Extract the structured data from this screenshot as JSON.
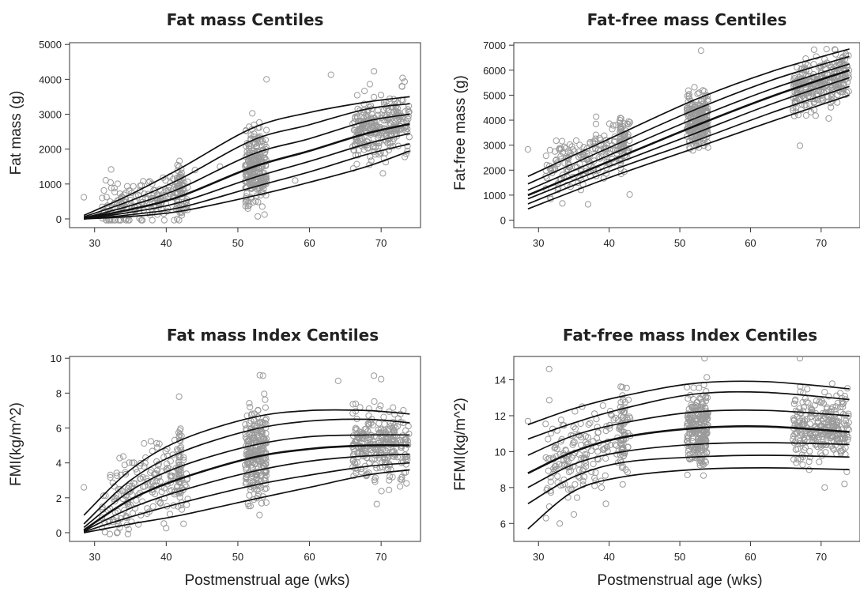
{
  "colors": {
    "points": "#9a9a9a",
    "lines": "#111111"
  },
  "chart_data": [
    {
      "type": "scatter",
      "title": "Fat mass Centiles",
      "xlabel": "",
      "ylabel": "Fat mass (g)",
      "xlim": [
        26.5,
        75.5
      ],
      "ylim": [
        -250,
        5050
      ],
      "xticks": [
        30,
        40,
        50,
        60,
        70
      ],
      "yticks": [
        0,
        1000,
        2000,
        3000,
        4000,
        5000
      ],
      "clusters": [
        {
          "x_range": [
            31,
            43
          ],
          "y_mean": 500,
          "y_sd": 330,
          "n": 190
        },
        {
          "x_range": [
            41.5,
            42.2
          ],
          "y_mean": 900,
          "y_sd": 420,
          "n": 45
        },
        {
          "x_range": [
            51,
            54
          ],
          "y_mean": 1500,
          "y_sd": 520,
          "n": 240
        },
        {
          "x_range": [
            66,
            74
          ],
          "y_mean": 2600,
          "y_sd": 450,
          "n": 280
        }
      ],
      "outliers": [
        [
          28.5,
          620
        ],
        [
          54,
          4000
        ],
        [
          63,
          4130
        ],
        [
          69,
          4230
        ],
        [
          73,
          4040
        ],
        [
          47.5,
          1500
        ],
        [
          58,
          1100
        ],
        [
          44,
          1400
        ]
      ],
      "centile_x": [
        28.5,
        35,
        42,
        52,
        60,
        68,
        74
      ],
      "centiles": [
        {
          "name": "c1",
          "values": [
            0,
            70,
            220,
            650,
            1050,
            1500,
            1950
          ]
        },
        {
          "name": "c2",
          "values": [
            0,
            120,
            330,
            900,
            1350,
            1850,
            2150
          ]
        },
        {
          "name": "c3",
          "values": [
            10,
            190,
            480,
            1170,
            1650,
            2150,
            2450
          ]
        },
        {
          "name": "c4",
          "values": [
            20,
            270,
            650,
            1480,
            1950,
            2450,
            2720
          ]
        },
        {
          "name": "c5",
          "values": [
            30,
            380,
            880,
            1850,
            2300,
            2800,
            3000
          ]
        },
        {
          "name": "c6",
          "values": [
            60,
            520,
            1150,
            2250,
            2700,
            3150,
            3300
          ]
        },
        {
          "name": "c7",
          "values": [
            100,
            700,
            1450,
            2600,
            3050,
            3350,
            3500
          ]
        }
      ]
    },
    {
      "type": "scatter",
      "title": "Fat-free mass Centiles",
      "xlabel": "",
      "ylabel": "Fat-free mass (g)",
      "xlim": [
        26.5,
        75.5
      ],
      "ylim": [
        -300,
        7100
      ],
      "xticks": [
        30,
        40,
        50,
        60,
        70
      ],
      "yticks": [
        0,
        1000,
        2000,
        3000,
        4000,
        5000,
        6000,
        7000
      ],
      "clusters": [
        {
          "x_range": [
            31,
            43
          ],
          "y_mean": 2600,
          "y_sd": 600,
          "n": 190
        },
        {
          "x_range": [
            41.5,
            42.2
          ],
          "y_mean": 3200,
          "y_sd": 500,
          "n": 45
        },
        {
          "x_range": [
            51,
            54
          ],
          "y_mean": 4000,
          "y_sd": 550,
          "n": 240
        },
        {
          "x_range": [
            66,
            74
          ],
          "y_mean": 5500,
          "y_sd": 500,
          "n": 280
        }
      ],
      "outliers": [
        [
          28.5,
          2830
        ],
        [
          53,
          6780
        ],
        [
          67,
          2980
        ],
        [
          69,
          6820
        ],
        [
          72,
          6810
        ]
      ],
      "centile_x": [
        28.5,
        40,
        52,
        63,
        74
      ],
      "centiles": [
        {
          "name": "c1",
          "values": [
            450,
            1700,
            2870,
            3950,
            5000
          ]
        },
        {
          "name": "c2",
          "values": [
            650,
            1950,
            3150,
            4300,
            5350
          ]
        },
        {
          "name": "c3",
          "values": [
            850,
            2150,
            3450,
            4650,
            5700
          ]
        },
        {
          "name": "c4",
          "values": [
            1000,
            2350,
            3750,
            4950,
            6000
          ]
        },
        {
          "name": "c5",
          "values": [
            1200,
            2600,
            4050,
            5250,
            6250
          ]
        },
        {
          "name": "c6",
          "values": [
            1450,
            2900,
            4400,
            5600,
            6550
          ]
        },
        {
          "name": "c7",
          "values": [
            1750,
            3250,
            4800,
            5950,
            6850
          ]
        }
      ]
    },
    {
      "type": "scatter",
      "title": "Fat mass Index Centiles",
      "xlabel": "Postmenstrual age (wks)",
      "ylabel": "FMI(kg/m^2)",
      "xlim": [
        26.5,
        75.5
      ],
      "ylim": [
        -0.5,
        10.1
      ],
      "xticks": [
        30,
        40,
        50,
        60,
        70
      ],
      "yticks": [
        0,
        2,
        4,
        6,
        8,
        10
      ],
      "clusters": [
        {
          "x_range": [
            31,
            43
          ],
          "y_mean": 2.6,
          "y_sd": 1.2,
          "n": 190
        },
        {
          "x_range": [
            41.5,
            42.2
          ],
          "y_mean": 3.8,
          "y_sd": 1.2,
          "n": 45
        },
        {
          "x_range": [
            51,
            54
          ],
          "y_mean": 4.5,
          "y_sd": 1.3,
          "n": 240
        },
        {
          "x_range": [
            66,
            74
          ],
          "y_mean": 5.0,
          "y_sd": 1.0,
          "n": 280
        }
      ],
      "outliers": [
        [
          28.5,
          2.6
        ],
        [
          53.5,
          9.0
        ],
        [
          41.8,
          7.8
        ],
        [
          69,
          9.0
        ],
        [
          70,
          8.8
        ],
        [
          64,
          8.7
        ]
      ],
      "centile_x": [
        28.5,
        35,
        42,
        52,
        60,
        68,
        74
      ],
      "centiles": [
        {
          "name": "c1",
          "values": [
            0.0,
            0.5,
            1.0,
            1.9,
            2.6,
            3.3,
            3.6
          ]
        },
        {
          "name": "c2",
          "values": [
            0.05,
            0.9,
            1.7,
            2.7,
            3.3,
            3.8,
            4.0
          ]
        },
        {
          "name": "c3",
          "values": [
            0.1,
            1.4,
            2.4,
            3.5,
            4.1,
            4.4,
            4.5
          ]
        },
        {
          "name": "c4",
          "values": [
            0.15,
            1.9,
            3.1,
            4.3,
            4.8,
            5.0,
            5.0
          ]
        },
        {
          "name": "c5",
          "values": [
            0.3,
            2.4,
            3.8,
            5.0,
            5.5,
            5.6,
            5.6
          ]
        },
        {
          "name": "c6",
          "values": [
            0.5,
            3.0,
            4.6,
            5.9,
            6.4,
            6.5,
            6.3
          ]
        },
        {
          "name": "c7",
          "values": [
            1.0,
            3.6,
            5.3,
            6.6,
            7.0,
            7.0,
            6.8
          ]
        }
      ]
    },
    {
      "type": "scatter",
      "title": "Fat-free mass Index Centiles",
      "xlabel": "Postmenstrual age (wks)",
      "ylabel": "FFMI(kg/m^2)",
      "xlim": [
        26.5,
        75.5
      ],
      "ylim": [
        5.0,
        15.3
      ],
      "xticks": [
        30,
        40,
        50,
        60,
        70
      ],
      "yticks": [
        6,
        8,
        10,
        12,
        14
      ],
      "clusters": [
        {
          "x_range": [
            31,
            43
          ],
          "y_mean": 10.2,
          "y_sd": 1.3,
          "n": 190
        },
        {
          "x_range": [
            41.5,
            42.2
          ],
          "y_mean": 11.0,
          "y_sd": 1.2,
          "n": 45
        },
        {
          "x_range": [
            51,
            54
          ],
          "y_mean": 11.3,
          "y_sd": 1.1,
          "n": 240
        },
        {
          "x_range": [
            66,
            74
          ],
          "y_mean": 11.3,
          "y_sd": 1.0,
          "n": 280
        }
      ],
      "outliers": [
        [
          28.5,
          11.7
        ],
        [
          31.5,
          14.6
        ],
        [
          33,
          6.0
        ],
        [
          35,
          6.5
        ],
        [
          53.5,
          15.2
        ],
        [
          67,
          15.2
        ],
        [
          70.5,
          8.0
        ]
      ],
      "centile_x": [
        28.5,
        35,
        42,
        52,
        62,
        74
      ],
      "centiles": [
        {
          "name": "c1",
          "values": [
            5.7,
            7.8,
            8.6,
            9.0,
            9.1,
            9.0
          ]
        },
        {
          "name": "c2",
          "values": [
            7.1,
            8.6,
            9.4,
            9.7,
            9.8,
            9.7
          ]
        },
        {
          "name": "c3",
          "values": [
            8.0,
            9.3,
            10.0,
            10.4,
            10.5,
            10.4
          ]
        },
        {
          "name": "c4",
          "values": [
            8.8,
            10.0,
            10.8,
            11.3,
            11.4,
            11.1
          ]
        },
        {
          "name": "c5",
          "values": [
            9.8,
            10.9,
            11.6,
            12.2,
            12.3,
            12.0
          ]
        },
        {
          "name": "c6",
          "values": [
            10.7,
            11.6,
            12.4,
            13.2,
            13.3,
            12.9
          ]
        },
        {
          "name": "c7",
          "values": [
            11.5,
            12.4,
            13.1,
            13.8,
            13.9,
            13.5
          ]
        }
      ]
    }
  ]
}
